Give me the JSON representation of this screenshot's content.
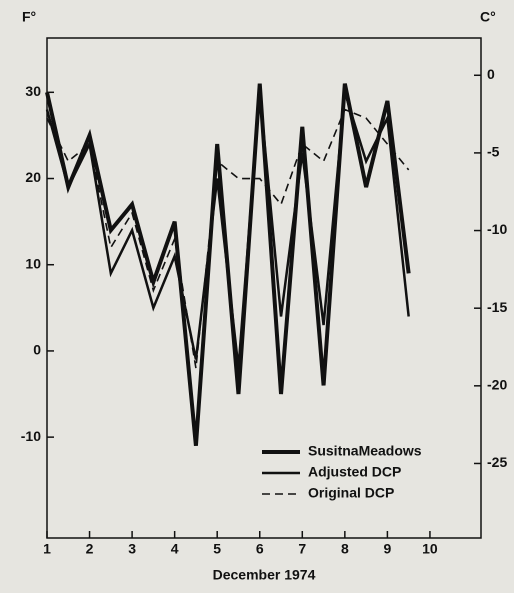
{
  "chart_data": {
    "type": "line",
    "xlabel": "December 1974",
    "ylabel": "F°",
    "y2label": "C°",
    "x": [
      1,
      1.5,
      2,
      2.5,
      3,
      3.5,
      4,
      4.5,
      5,
      5.5,
      6,
      6.5,
      7,
      7.5,
      8,
      8.5,
      9,
      9.5
    ],
    "series": [
      {
        "name": "SusitnaMeadows",
        "color": "#111111",
        "width": 4,
        "style": "solid",
        "values": [
          30,
          19,
          25,
          14,
          17,
          8,
          15,
          -11,
          24,
          -5,
          31,
          -5,
          26,
          -4,
          31,
          19,
          29,
          9
        ]
      },
      {
        "name": "Adjusted DCP",
        "color": "#111111",
        "width": 2.5,
        "style": "solid",
        "values": [
          28,
          19,
          24,
          9,
          14,
          5,
          11,
          -1,
          20,
          -2,
          30,
          4,
          23,
          3,
          30,
          22,
          27,
          4
        ]
      },
      {
        "name": "Original DCP",
        "color": "#111111",
        "width": 1.6,
        "style": "dashed",
        "values": [
          27,
          22,
          24,
          12,
          16,
          7,
          13,
          -2,
          22,
          20,
          20,
          17,
          24,
          22,
          28,
          27,
          24,
          21
        ]
      }
    ],
    "xlim": [
      1,
      11.2
    ],
    "xticks": [
      1,
      2,
      3,
      4,
      5,
      6,
      7,
      8,
      9,
      10
    ],
    "ylim": [
      -21.7,
      36.3
    ],
    "yticks": [
      -10,
      0,
      10,
      20,
      30
    ],
    "y2lim": [
      -29.8,
      2.4
    ],
    "y2ticks": [
      0,
      -5,
      -10,
      -15,
      -20,
      -25
    ],
    "legend": "lower right"
  }
}
